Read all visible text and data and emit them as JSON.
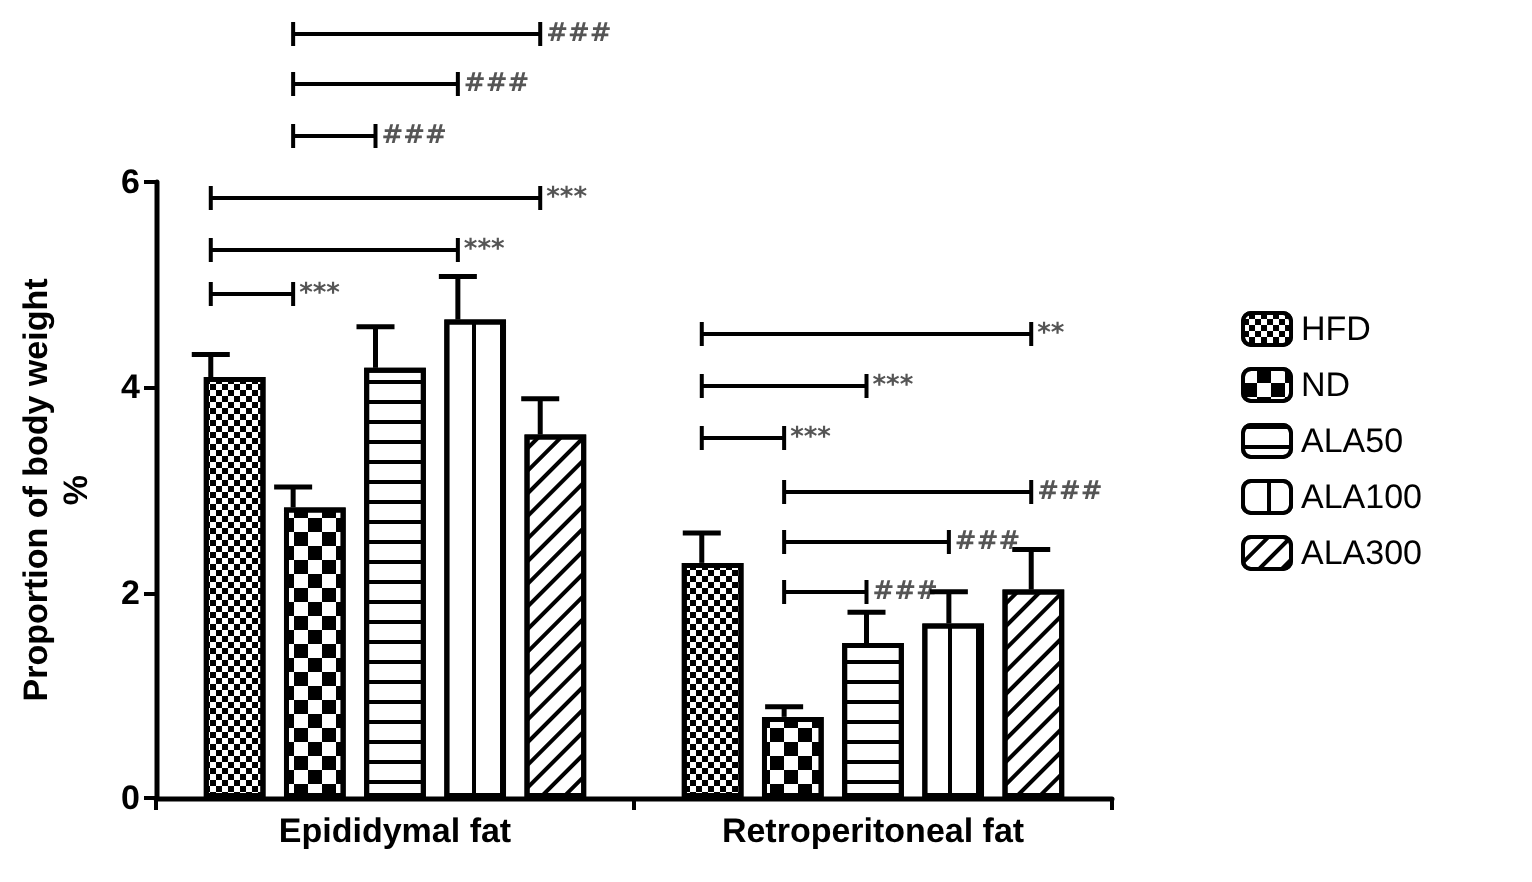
{
  "chart_data": {
    "type": "bar",
    "categories": [
      "Epididymal fat",
      "Retroperitoneal fat"
    ],
    "ylabel": "Proportion of body weight\n%",
    "ylim": [
      0,
      6
    ],
    "yticks": [
      0,
      2,
      4,
      6
    ],
    "grid": false,
    "legend": "right",
    "series": [
      {
        "name": "HFD",
        "color": "#000000",
        "values": [
          4.1,
          2.29
        ],
        "errors": [
          0.22,
          0.29
        ]
      },
      {
        "name": "ND",
        "color": "#000000",
        "values": [
          2.83,
          0.79
        ],
        "errors": [
          0.2,
          0.1
        ]
      },
      {
        "name": "ALA50",
        "color": "#000000",
        "values": [
          4.19,
          1.51
        ],
        "errors": [
          0.4,
          0.3
        ]
      },
      {
        "name": "ALA100",
        "color": "#000000",
        "values": [
          4.66,
          1.7
        ],
        "errors": [
          0.42,
          0.31
        ]
      },
      {
        "name": "ALA300",
        "color": "#000000",
        "values": [
          3.54,
          2.03
        ],
        "errors": [
          0.35,
          0.39
        ]
      }
    ],
    "annotations": [
      "***",
      "***",
      "***",
      "###",
      "###",
      "###",
      "***",
      "***",
      "**",
      "###",
      "###",
      "###"
    ]
  }
}
